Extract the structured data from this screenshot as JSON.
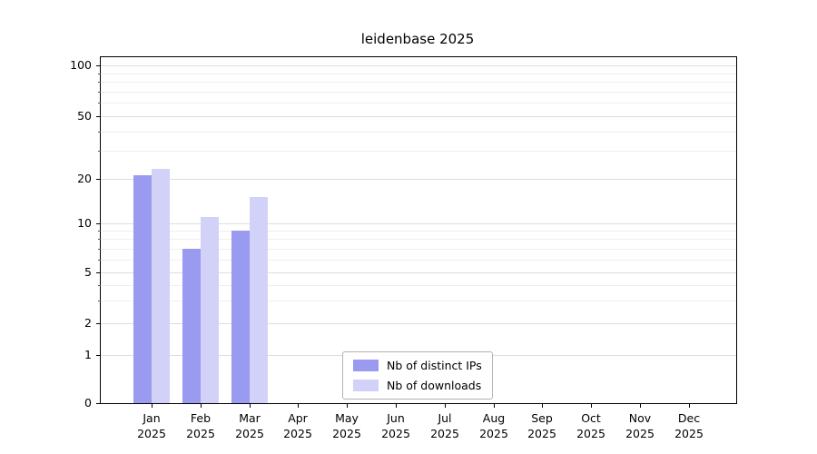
{
  "title": "leidenbase 2025",
  "chart_data": {
    "type": "bar",
    "title": "leidenbase 2025",
    "categories": [
      "Jan",
      "Feb",
      "Mar",
      "Apr",
      "May",
      "Jun",
      "Jul",
      "Aug",
      "Sep",
      "Oct",
      "Nov",
      "Dec"
    ],
    "year_label": "2025",
    "series": [
      {
        "name": "Nb of distinct IPs",
        "color": "#9a9af0",
        "values": [
          21,
          7,
          9,
          0,
          0,
          0,
          0,
          0,
          0,
          0,
          0,
          0
        ]
      },
      {
        "name": "Nb of downloads",
        "color": "#d2d2f8",
        "values": [
          23,
          11,
          15,
          0,
          0,
          0,
          0,
          0,
          0,
          0,
          0,
          0
        ]
      }
    ],
    "yticks": [
      0,
      1,
      2,
      5,
      10,
      20,
      50,
      100
    ],
    "minor_yticks": [
      3,
      4,
      6,
      7,
      8,
      9,
      30,
      40,
      60,
      70,
      80,
      90
    ],
    "yscale": "log",
    "ylim": [
      0,
      100
    ],
    "grid": "on",
    "legend_position": "lower center"
  }
}
